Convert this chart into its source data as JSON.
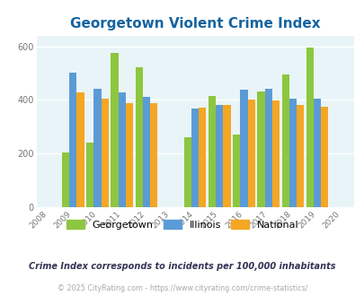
{
  "title": "Georgetown Violent Crime Index",
  "years": [
    2009,
    2010,
    2011,
    2012,
    2014,
    2015,
    2016,
    2017,
    2018,
    2019
  ],
  "georgetown": [
    205,
    240,
    575,
    520,
    262,
    415,
    270,
    430,
    495,
    595
  ],
  "illinois": [
    500,
    440,
    428,
    410,
    368,
    382,
    438,
    443,
    405,
    405
  ],
  "national": [
    428,
    406,
    388,
    388,
    372,
    382,
    400,
    399,
    381,
    376
  ],
  "bar_width": 0.3,
  "xlim": [
    2007.5,
    2020.5
  ],
  "ylim": [
    0,
    640
  ],
  "yticks": [
    0,
    200,
    400,
    600
  ],
  "xticks": [
    2008,
    2009,
    2010,
    2011,
    2012,
    2013,
    2014,
    2015,
    2016,
    2017,
    2018,
    2019,
    2020
  ],
  "color_georgetown": "#8dc63f",
  "color_illinois": "#5b9bd5",
  "color_national": "#f5a623",
  "bg_color": "#e8f4f8",
  "grid_color": "#ffffff",
  "title_color": "#1464a0",
  "subtitle": "Crime Index corresponds to incidents per 100,000 inhabitants",
  "footer": "© 2025 CityRating.com - https://www.cityrating.com/crime-statistics/"
}
